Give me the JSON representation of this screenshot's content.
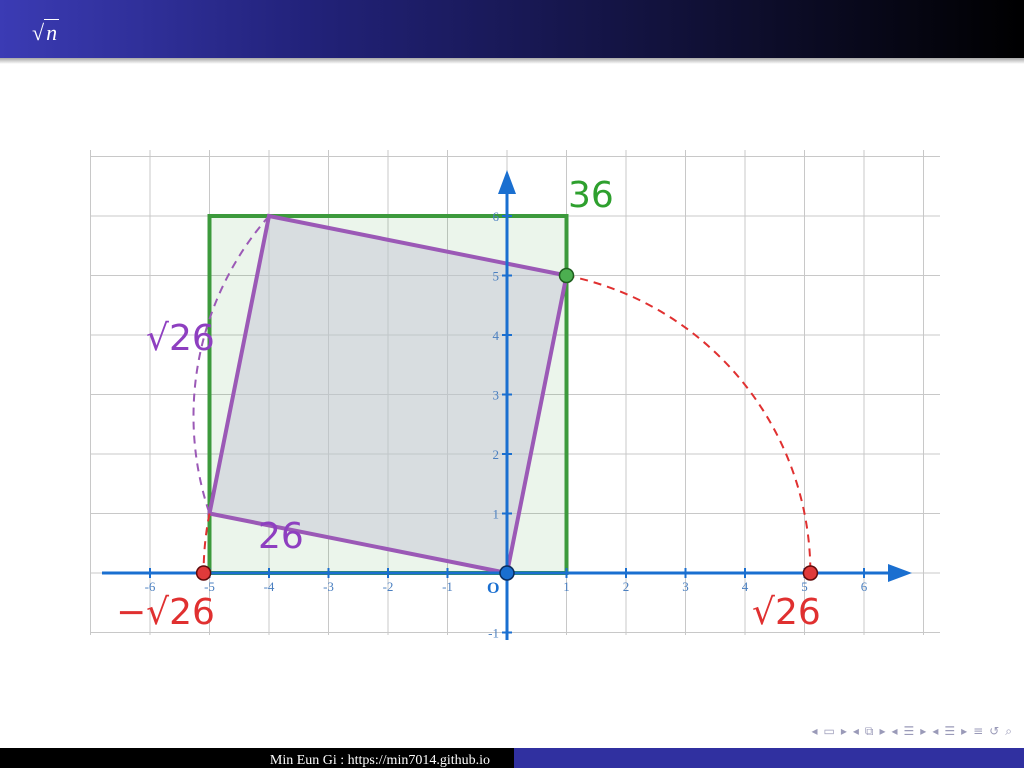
{
  "slide": {
    "title_symbol": "√",
    "title_var": "n",
    "footer_text": "Min Eun Gi : https://min7014.github.io"
  },
  "figure": {
    "x_ticks": [
      "-6",
      "-5",
      "-4",
      "-3",
      "-2",
      "-1",
      "1",
      "2",
      "3",
      "4",
      "5",
      "6"
    ],
    "y_ticks": [
      "-1",
      "1",
      "2",
      "3",
      "4",
      "5",
      "6"
    ],
    "origin_label": "O",
    "big_square_label": "36",
    "tilted_square_label": "26",
    "side_label": "√26",
    "pos_root_label": "√26",
    "neg_root_label": "−√26",
    "colors": {
      "green": "#3c9a3c",
      "purple": "#9b59b6",
      "red": "#e03030",
      "axis": "#1a6fd0",
      "grid": "#c8c8c8"
    }
  },
  "nav_icons": [
    "left-arrow",
    "frame-icon",
    "right-arrow",
    "left-arrow",
    "subsection-icon",
    "right-arrow",
    "left-arrow",
    "section-icon",
    "right-arrow",
    "left-arrow",
    "list-icon",
    "right-arrow",
    "align-icon",
    "undo-icon",
    "search-icon"
  ]
}
